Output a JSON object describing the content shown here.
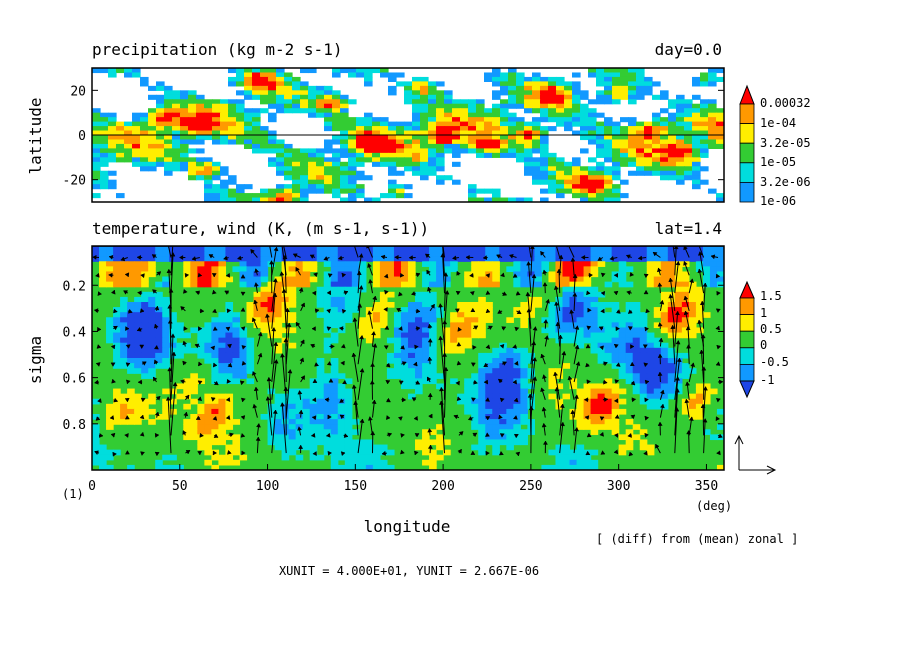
{
  "chart_data": [
    {
      "type": "heatmap",
      "title": "precipitation (kg m-2 s-1)",
      "subtitle": "day=0.0",
      "ylabel": "latitude",
      "xlim": [
        0,
        360
      ],
      "ylim": [
        -30,
        30
      ],
      "yticks": [
        "20",
        "0",
        "-20"
      ],
      "ytick_values": [
        20,
        0,
        -20
      ],
      "zero_line": true,
      "colorbar": {
        "labels": [
          "0.00032",
          "1e-04",
          "3.2e-05",
          "1e-05",
          "3.2e-06",
          "1e-06"
        ],
        "colors": [
          "#ff0000",
          "#ff9900",
          "#ffee00",
          "#33cc33",
          "#00dddd",
          "#1199ff",
          "#ffffff"
        ]
      }
    },
    {
      "type": "heatmap",
      "title": "temperature, wind (K, (m s-1, s-1))",
      "subtitle": "lat=1.4",
      "xlabel": "longitude",
      "ylabel": "sigma",
      "xlim": [
        0,
        360
      ],
      "ylim": [
        0.03,
        1.0
      ],
      "xticks": [
        "0",
        "50",
        "100",
        "150",
        "200",
        "250",
        "300",
        "350"
      ],
      "xtick_values": [
        0,
        50,
        100,
        150,
        200,
        250,
        300,
        350
      ],
      "x_unit": "(deg)",
      "yticks": [
        "0.2",
        "0.4",
        "0.6",
        "0.8"
      ],
      "ytick_values": [
        0.2,
        0.4,
        0.6,
        0.8
      ],
      "frame_number": "(1)",
      "overlay": "wind vectors",
      "colorbar": {
        "labels": [
          "1.5",
          "1",
          "0.5",
          "0",
          "-0.5",
          "-1"
        ],
        "colors": [
          "#ff0000",
          "#ff9900",
          "#ffee00",
          "#33cc33",
          "#00dddd",
          "#1199ff",
          "#1e46e6"
        ]
      },
      "note": "[ (diff) from (mean) zonal ]"
    }
  ],
  "footer": "XUNIT = 4.000E+01, YUNIT = 2.667E-06"
}
